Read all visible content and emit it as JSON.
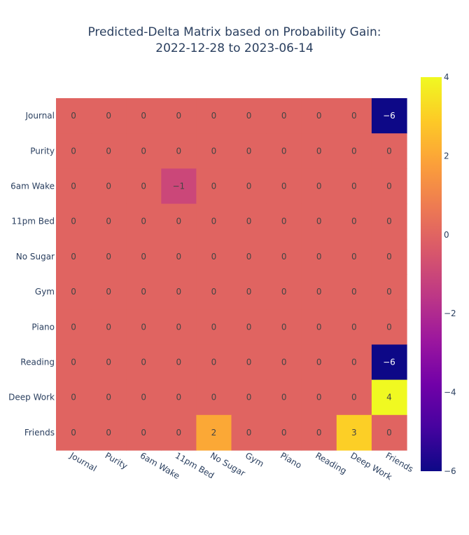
{
  "chart_data": {
    "type": "heatmap",
    "title": "Predicted-Delta Matrix based on Probability Gain:",
    "subtitle": "2022-12-28 to 2023-06-14",
    "rows": [
      "Journal",
      "Purity",
      "6am Wake",
      "11pm Bed",
      "No Sugar",
      "Gym",
      "Piano",
      "Reading",
      "Deep Work",
      "Friends"
    ],
    "columns": [
      "Journal",
      "Purity",
      "6am Wake",
      "11pm Bed",
      "No Sugar",
      "Gym",
      "Piano",
      "Reading",
      "Deep Work",
      "Friends"
    ],
    "values": [
      [
        0,
        0,
        0,
        0,
        0,
        0,
        0,
        0,
        0,
        -6
      ],
      [
        0,
        0,
        0,
        0,
        0,
        0,
        0,
        0,
        0,
        0
      ],
      [
        0,
        0,
        0,
        -1,
        0,
        0,
        0,
        0,
        0,
        0
      ],
      [
        0,
        0,
        0,
        0,
        0,
        0,
        0,
        0,
        0,
        0
      ],
      [
        0,
        0,
        0,
        0,
        0,
        0,
        0,
        0,
        0,
        0
      ],
      [
        0,
        0,
        0,
        0,
        0,
        0,
        0,
        0,
        0,
        0
      ],
      [
        0,
        0,
        0,
        0,
        0,
        0,
        0,
        0,
        0,
        0
      ],
      [
        0,
        0,
        0,
        0,
        0,
        0,
        0,
        0,
        0,
        -6
      ],
      [
        0,
        0,
        0,
        0,
        0,
        0,
        0,
        0,
        0,
        4
      ],
      [
        0,
        0,
        0,
        0,
        2,
        0,
        0,
        0,
        3,
        0
      ]
    ],
    "colorscale": "plasma",
    "zlim": [
      -6,
      4
    ],
    "colorbar_ticks": [
      4,
      2,
      0,
      -2,
      -4,
      -6
    ]
  }
}
